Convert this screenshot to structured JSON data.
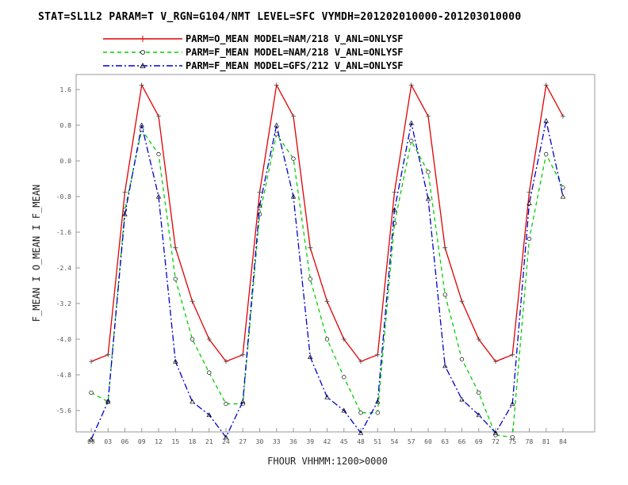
{
  "title": "STAT=SL1L2 PARAM=T V_RGN=G104/NMT LEVEL=SFC VYMDH=201202010000-201203010000",
  "chart_data": {
    "type": "line",
    "xlabel": "FHOUR VHHMM:1200>0000",
    "ylabel": "F_MEAN I O_MEAN I F_MEAN",
    "categories": [
      "00",
      "03",
      "06",
      "09",
      "12",
      "15",
      "18",
      "21",
      "24",
      "27",
      "30",
      "33",
      "36",
      "39",
      "42",
      "45",
      "48",
      "51",
      "54",
      "57",
      "60",
      "63",
      "66",
      "69",
      "72",
      "75",
      "78",
      "81",
      "84"
    ],
    "ylim": [
      -6.1,
      1.7
    ],
    "yticks": [
      "1.6",
      "0.8",
      "0.0",
      "-0.8",
      "-1.6",
      "-2.4",
      "-3.2",
      "-4.0",
      "-4.8",
      "-5.6"
    ],
    "ytick_values": [
      1.6,
      0.8,
      0.0,
      -0.8,
      -1.6,
      -2.4,
      -3.2,
      -4.0,
      -4.8,
      -5.6
    ],
    "series": [
      {
        "name": "PARM=O_MEAN MODEL=NAM/218 V_ANL=ONLYSF",
        "color": "#e00000",
        "dash": "solid",
        "marker": "plus",
        "values": [
          -4.5,
          -4.35,
          -0.7,
          1.7,
          1.0,
          -1.95,
          -3.15,
          -4.0,
          -4.5,
          -4.35,
          -0.7,
          1.7,
          1.0,
          -1.95,
          -3.15,
          -4.0,
          -4.5,
          -4.35,
          -0.7,
          1.7,
          1.0,
          -1.95,
          -3.15,
          -4.0,
          -4.5,
          -4.35,
          -0.7,
          1.7,
          1.0
        ]
      },
      {
        "name": "PARM=F_MEAN MODEL=NAM/218 V_ANL=ONLYSF",
        "color": "#00d000",
        "dash": "dashed",
        "marker": "circle",
        "values": [
          -5.2,
          -5.4,
          -1.1,
          0.7,
          0.15,
          -2.65,
          -4.0,
          -4.75,
          -5.45,
          -5.45,
          -1.2,
          0.6,
          0.05,
          -2.65,
          -4.0,
          -4.85,
          -5.65,
          -5.65,
          -1.4,
          0.45,
          -0.25,
          -3.0,
          -4.45,
          -5.2,
          -6.15,
          -6.2,
          -1.75,
          0.15,
          -0.6
        ]
      },
      {
        "name": "PARM=F_MEAN MODEL=GFS/212 V_ANL=ONLYSF",
        "color": "#0000d0",
        "dash": "dashdot",
        "marker": "triangle",
        "values": [
          -6.25,
          -5.4,
          -1.2,
          0.8,
          -0.8,
          -4.5,
          -5.4,
          -5.7,
          -6.2,
          -5.4,
          -1.0,
          0.8,
          -0.8,
          -4.4,
          -5.3,
          -5.6,
          -6.1,
          -5.4,
          -1.1,
          0.85,
          -0.85,
          -4.6,
          -5.35,
          -5.7,
          -6.1,
          -5.45,
          -0.95,
          0.9,
          -0.8
        ]
      }
    ]
  }
}
